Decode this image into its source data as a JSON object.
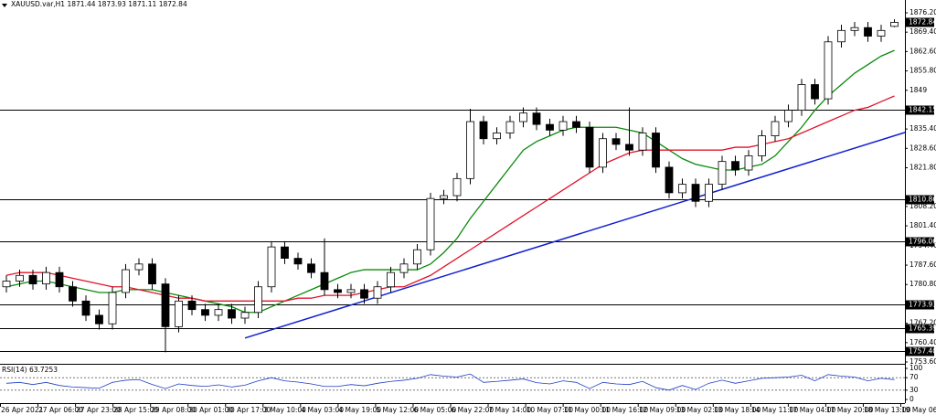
{
  "chart_data": {
    "type": "candlestick",
    "symbol": "XAUUSD.var,H1",
    "up_color": "#ffffff",
    "down_color": "#000000",
    "wick_color": "#000000",
    "open": [
      1780,
      1782,
      1784,
      1781,
      1785,
      1780,
      1775,
      1770,
      1767,
      1778,
      1786,
      1788,
      1781,
      1766,
      1775,
      1772,
      1770,
      1772,
      1769,
      1771,
      1780,
      1794,
      1790,
      1788,
      1785,
      1779,
      1778,
      1779,
      1776,
      1780,
      1785,
      1788,
      1793,
      1811,
      1812,
      1818,
      1838,
      1832,
      1834,
      1838,
      1841,
      1837,
      1835,
      1838,
      1836,
      1822,
      1832,
      1830,
      1828,
      1834,
      1822,
      1813,
      1816,
      1810,
      1816,
      1824,
      1821,
      1826,
      1833,
      1838,
      1842,
      1851,
      1846,
      1866,
      1870,
      1871,
      1868,
      1871.44
    ],
    "high": [
      1784,
      1786,
      1786,
      1787,
      1787,
      1782,
      1777,
      1772,
      1780,
      1788,
      1790,
      1790,
      1783,
      1777,
      1777,
      1774,
      1774,
      1774,
      1773,
      1782,
      1796,
      1796,
      1792,
      1790,
      1797,
      1781,
      1781,
      1781,
      1782,
      1787,
      1790,
      1795,
      1813,
      1814,
      1820,
      1842.5,
      1840,
      1836,
      1840,
      1843,
      1843,
      1839,
      1840,
      1840,
      1838,
      1834,
      1834,
      1843,
      1836,
      1836,
      1824,
      1818,
      1818,
      1818,
      1826,
      1826,
      1828,
      1835,
      1840,
      1844,
      1853,
      1853,
      1868,
      1872,
      1873,
      1873,
      1872,
      1873.93
    ],
    "low": [
      1778,
      1780,
      1779,
      1779,
      1778,
      1773,
      1768,
      1765,
      1765,
      1776,
      1784,
      1779,
      1757,
      1764,
      1770,
      1768,
      1768,
      1767,
      1767,
      1769,
      1778,
      1788,
      1786,
      1783,
      1777,
      1776,
      1776,
      1774,
      1774,
      1778,
      1783,
      1786,
      1791,
      1809,
      1810,
      1816,
      1830,
      1830,
      1832,
      1836,
      1835,
      1833,
      1833,
      1834,
      1820,
      1820,
      1828,
      1826,
      1826,
      1820,
      1811,
      1811,
      1808,
      1808,
      1814,
      1819,
      1819,
      1824,
      1831,
      1836,
      1840,
      1844,
      1844,
      1864,
      1868,
      1866,
      1866,
      1871.11
    ],
    "close": [
      1782,
      1784,
      1781,
      1785,
      1780,
      1775,
      1770,
      1767,
      1778,
      1786,
      1788,
      1781,
      1766,
      1775,
      1772,
      1770,
      1772,
      1769,
      1771,
      1780,
      1794,
      1790,
      1788,
      1785,
      1779,
      1778,
      1779,
      1776,
      1780,
      1785,
      1788,
      1793,
      1811,
      1812,
      1818,
      1838,
      1832,
      1834,
      1838,
      1841,
      1837,
      1835,
      1838,
      1836,
      1822,
      1832,
      1830,
      1828,
      1834,
      1822,
      1813,
      1816,
      1810,
      1816,
      1824,
      1821,
      1826,
      1833,
      1838,
      1842,
      1851,
      1846,
      1866,
      1870,
      1871,
      1868,
      1870,
      1872.84
    ],
    "moving_averages": [
      {
        "color": "#0a8a0a",
        "values": [
          1780,
          1781,
          1782,
          1782,
          1781,
          1780,
          1779,
          1778,
          1778,
          1779,
          1779,
          1779,
          1778,
          1777,
          1776,
          1775,
          1774,
          1773,
          1771,
          1771,
          1773,
          1775,
          1777,
          1779,
          1781,
          1783,
          1785,
          1786,
          1786,
          1786,
          1786,
          1786,
          1788,
          1792,
          1797,
          1804,
          1810,
          1816,
          1822,
          1828,
          1831,
          1833,
          1835,
          1836,
          1836,
          1836,
          1836,
          1835,
          1834,
          1831,
          1828,
          1825,
          1823,
          1822,
          1821,
          1821,
          1822,
          1823,
          1826,
          1831,
          1836,
          1842,
          1847,
          1851,
          1855,
          1858,
          1861,
          1863
        ]
      },
      {
        "color": "#e0142a",
        "values": [
          1784,
          1785,
          1785,
          1785,
          1784,
          1783,
          1782,
          1781,
          1780,
          1780,
          1779,
          1778,
          1777,
          1776,
          1776,
          1775,
          1775,
          1775,
          1775,
          1775,
          1775,
          1775,
          1776,
          1776,
          1777,
          1777,
          1777,
          1778,
          1779,
          1780,
          1780,
          1782,
          1784,
          1787,
          1790,
          1793,
          1796,
          1799,
          1802,
          1805,
          1808,
          1811,
          1814,
          1817,
          1820,
          1823,
          1825,
          1827,
          1828,
          1828,
          1828,
          1828,
          1828,
          1828,
          1828,
          1829,
          1829,
          1830,
          1831,
          1832,
          1834,
          1836,
          1838,
          1840,
          1842,
          1843,
          1845,
          1847
        ]
      }
    ],
    "trendline": {
      "color": "#1020d0",
      "x": [
        18,
        67.8
      ],
      "values": [
        1762.0,
        1834.2
      ]
    },
    "levels": [
      1842.15,
      1810.86,
      1796.06,
      1773.93,
      1765.39,
      {
        "value": 1757.4,
        "label": "1757.40"
      }
    ],
    "ylim": [
      1753.6,
      1876.2
    ],
    "yticks": [
      {
        "value": 1876.2,
        "label": "1876.20"
      },
      {
        "value": 1869.4,
        "label": "1869.40"
      },
      {
        "value": 1862.6,
        "label": "1862.60"
      },
      {
        "value": 1855.8,
        "label": "1855.80"
      },
      1849,
      {
        "value": 1835.4,
        "label": "1835.40"
      },
      {
        "value": 1828.6,
        "label": "1828.60"
      },
      {
        "value": 1821.8,
        "label": "1821.80"
      },
      {
        "value": 1808.2,
        "label": "1808.20"
      },
      {
        "value": 1801.4,
        "label": "1801.40"
      },
      {
        "value": 1794.4,
        "label": "1794.40"
      },
      {
        "value": 1787.6,
        "label": "1787.60"
      },
      {
        "value": 1780.8,
        "label": "1780.80"
      },
      {
        "value": 1767.2,
        "label": "1767.20"
      },
      {
        "value": 1760.4,
        "label": "1760.40"
      },
      {
        "value": 1753.6,
        "label": "1753.60"
      }
    ],
    "x_tick_labels": [
      "26 Apr 2021",
      "27 Apr 06:00",
      "27 Apr 23:00",
      "28 Apr 15:00",
      "29 Apr 08:00",
      "30 Apr 01:00",
      "30 Apr 17:00",
      "3 May 10:00",
      "4 May 03:00",
      "4 May 19:00",
      "5 May 12:00",
      "6 May 05:00",
      "6 May 22:00",
      "7 May 14:00",
      "10 May 07:00",
      "11 May 00:00",
      "11 May 16:00",
      "12 May 09:00",
      "13 May 02:00",
      "13 May 18:00",
      "14 May 11:00",
      "17 May 04:00",
      "17 May 20:00",
      "18 May 13:00",
      "19 May 06:00"
    ],
    "rsi": {
      "name": "RSI(14)",
      "color": "#1e3cc8",
      "ylim": [
        0,
        100
      ],
      "yticks": [
        100,
        70,
        30,
        0
      ],
      "levels": [
        70,
        30
      ],
      "values": [
        52,
        55,
        48,
        55,
        45,
        40,
        38,
        36,
        55,
        62,
        64,
        48,
        35,
        50,
        45,
        42,
        47,
        40,
        46,
        60,
        70,
        60,
        56,
        50,
        42,
        42,
        48,
        44,
        52,
        58,
        62,
        68,
        80,
        75,
        72,
        82,
        55,
        58,
        62,
        66,
        54,
        50,
        60,
        55,
        35,
        55,
        50,
        48,
        58,
        38,
        30,
        45,
        32,
        52,
        62,
        52,
        60,
        68,
        70,
        72,
        78,
        60,
        80,
        75,
        72,
        60,
        68,
        63.7253
      ]
    }
  }
}
